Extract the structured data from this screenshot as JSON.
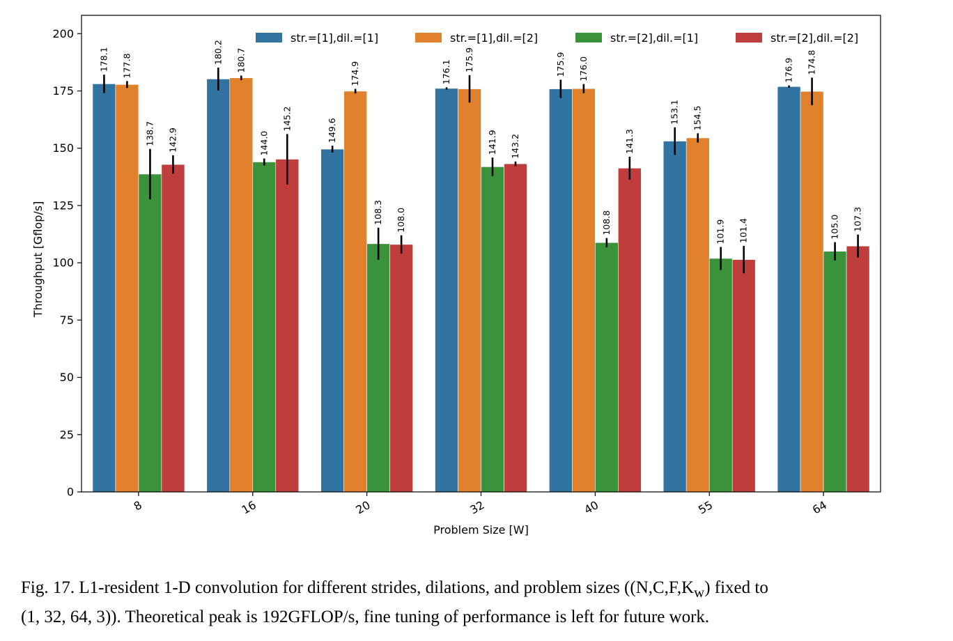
{
  "caption": {
    "line1": "Fig. 17.  L1-resident 1-D convolution for different strides, dilations, and problem sizes ((N, C, F, Kᵥ ) fixed to",
    "line1_plain": "Fig. 17.  L1-resident 1-D convolution for different strides, dilations, and problem sizes ((N,C,F,K",
    "line1_sub": "w",
    "line1_end": ") fixed to",
    "line2": "(1, 32, 64, 3)). Theoretical peak is 192GFLOP/s, fine tuning of performance is left for future work."
  },
  "chart_data": {
    "type": "bar",
    "xlabel": "Problem Size [W]",
    "ylabel": "Throughput [Gflop/s]",
    "ylim": [
      0,
      208
    ],
    "yticks": [
      0,
      25,
      50,
      75,
      100,
      125,
      150,
      175,
      200
    ],
    "categories": [
      "8",
      "16",
      "20",
      "32",
      "40",
      "55",
      "64"
    ],
    "legend_position": "top",
    "grid": false,
    "series": [
      {
        "name": "str.=[1],dil.=[1]",
        "color": "#3274a1",
        "values": [
          178.1,
          180.2,
          149.6,
          176.1,
          175.9,
          153.1,
          176.9
        ],
        "err": [
          4,
          5,
          1.5,
          0.5,
          4,
          6,
          0.5
        ]
      },
      {
        "name": "str.=[1],dil.=[2]",
        "color": "#e1812c",
        "values": [
          177.8,
          180.7,
          174.9,
          175.9,
          176.0,
          154.5,
          174.8
        ],
        "err": [
          1.5,
          1,
          1,
          6,
          2,
          2,
          6
        ]
      },
      {
        "name": "str.=[2],dil.=[1]",
        "color": "#3a923a",
        "values": [
          138.7,
          144.0,
          108.3,
          141.9,
          108.8,
          101.9,
          105.0
        ],
        "err": [
          11,
          1.5,
          7,
          4,
          2,
          5,
          4
        ]
      },
      {
        "name": "str.=[2],dil.=[2]",
        "color": "#c03d3e",
        "values": [
          142.9,
          145.2,
          108.0,
          143.2,
          141.3,
          101.4,
          107.3
        ],
        "err": [
          4,
          11,
          4,
          1,
          5,
          6,
          5
        ]
      }
    ]
  }
}
